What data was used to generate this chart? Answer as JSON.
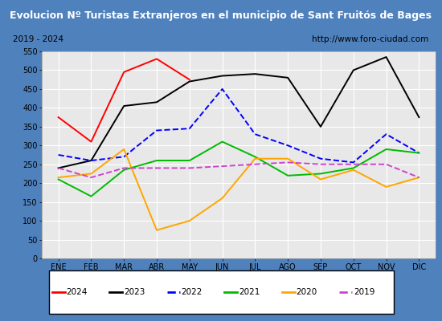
{
  "title": "Evolucion Nº Turistas Extranjeros en el municipio de Sant Fruitós de Bages",
  "subtitle_left": "2019 - 2024",
  "subtitle_right": "http://www.foro-ciudad.com",
  "months": [
    "ENE",
    "FEB",
    "MAR",
    "ABR",
    "MAY",
    "JUN",
    "JUL",
    "AGO",
    "SEP",
    "OCT",
    "NOV",
    "DIC"
  ],
  "series": {
    "2024": [
      375,
      310,
      495,
      530,
      475,
      null,
      null,
      null,
      null,
      null,
      null,
      null
    ],
    "2023": [
      240,
      260,
      405,
      415,
      470,
      485,
      490,
      480,
      350,
      500,
      535,
      375
    ],
    "2022": [
      275,
      260,
      270,
      340,
      345,
      450,
      330,
      300,
      265,
      255,
      330,
      280
    ],
    "2021": [
      210,
      165,
      235,
      260,
      260,
      310,
      270,
      220,
      225,
      240,
      290,
      280
    ],
    "2020": [
      215,
      225,
      290,
      75,
      100,
      160,
      265,
      265,
      210,
      235,
      190,
      215
    ],
    "2019": [
      240,
      215,
      240,
      240,
      240,
      245,
      250,
      255,
      250,
      250,
      250,
      215
    ]
  },
  "colors": {
    "2024": "#ff0000",
    "2023": "#000000",
    "2022": "#0000ff",
    "2021": "#00bb00",
    "2020": "#ffa500",
    "2019": "#cc44cc"
  },
  "line_styles": {
    "2024": "-",
    "2023": "-",
    "2022": "--",
    "2021": "-",
    "2020": "-",
    "2019": "--"
  },
  "ylim": [
    0,
    550
  ],
  "yticks": [
    0,
    50,
    100,
    150,
    200,
    250,
    300,
    350,
    400,
    450,
    500,
    550
  ],
  "title_bg": "#4f81bd",
  "title_color": "#ffffff",
  "plot_bg": "#e8e8e8",
  "grid_color": "#ffffff",
  "outer_bg": "#4f81bd"
}
